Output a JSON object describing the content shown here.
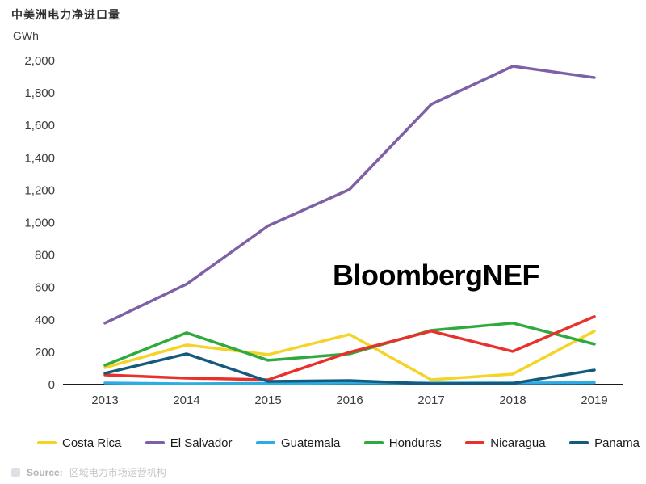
{
  "header": {
    "title": "中美洲电力净进口量",
    "unit": "GWh"
  },
  "watermark": "BloombergNEF",
  "source": {
    "prefix": "Source:",
    "text": "区域电力市场运营机构"
  },
  "chart_data": {
    "type": "line",
    "title": "中美洲电力净进口量",
    "ylabel": "GWh",
    "xlabel": "",
    "x": [
      2013,
      2014,
      2015,
      2016,
      2017,
      2018,
      2019
    ],
    "series": [
      {
        "name": "Costa Rica",
        "color": "#F5D327",
        "values": [
          105,
          245,
          185,
          310,
          30,
          65,
          330
        ]
      },
      {
        "name": "El Salvador",
        "color": "#7D60A5",
        "values": [
          380,
          620,
          980,
          1205,
          1730,
          1965,
          1895
        ]
      },
      {
        "name": "Guatemala",
        "color": "#2CACE3",
        "values": [
          10,
          5,
          8,
          10,
          10,
          10,
          12
        ]
      },
      {
        "name": "Honduras",
        "color": "#2FAA3F",
        "values": [
          120,
          320,
          150,
          190,
          335,
          380,
          250
        ]
      },
      {
        "name": "Nicaragua",
        "color": "#E8312A",
        "values": [
          60,
          40,
          30,
          200,
          330,
          205,
          420
        ]
      },
      {
        "name": "Panama",
        "color": "#155A7D",
        "values": [
          70,
          190,
          20,
          25,
          5,
          8,
          90
        ]
      }
    ],
    "ylim": [
      0,
      2000
    ],
    "ytick_step": 200,
    "grid": false,
    "legend_position": "bottom"
  }
}
